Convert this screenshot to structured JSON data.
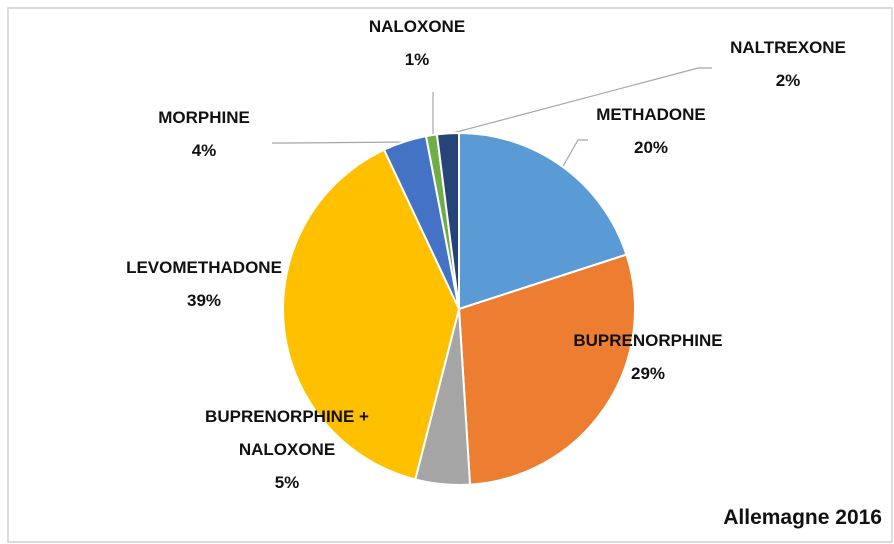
{
  "chart_data": {
    "type": "pie",
    "title": "Allemagne 2016",
    "categories": [
      "METHADONE",
      "BUPRENORPHINE",
      "BUPRENORPHINE + NALOXONE",
      "LEVOMETHADONE",
      "MORPHINE",
      "NALOXONE",
      "NALTREXONE"
    ],
    "values": [
      20,
      29,
      5,
      39,
      4,
      1,
      2
    ],
    "value_labels": [
      "20%",
      "29%",
      "5%",
      "39%",
      "4%",
      "1%",
      "2%"
    ],
    "colors": [
      "#5b9bd5",
      "#ed7d31",
      "#a5a5a5",
      "#ffc000",
      "#4472c4",
      "#70ad47",
      "#264478"
    ]
  }
}
